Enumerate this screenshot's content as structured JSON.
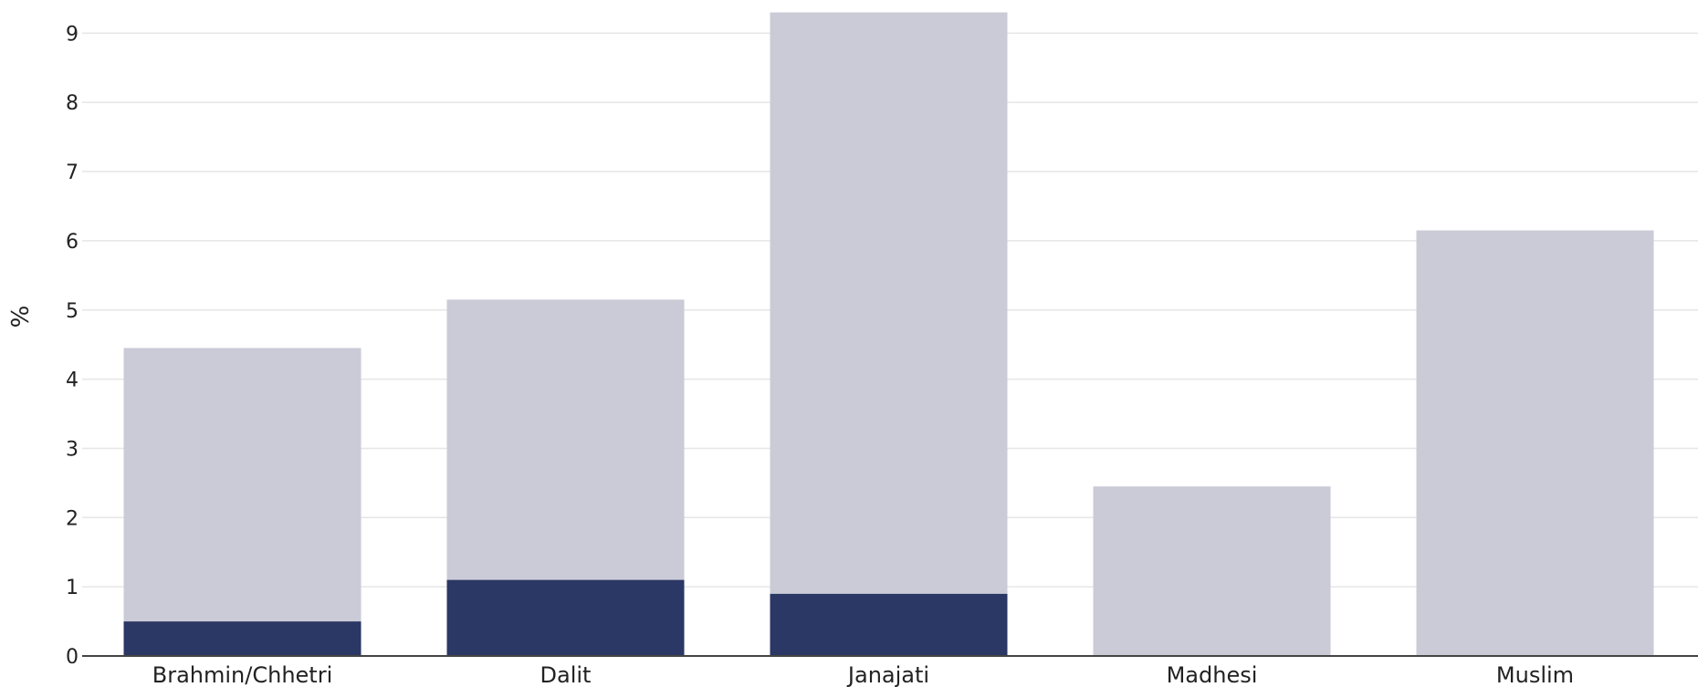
{
  "chart_data": {
    "type": "bar",
    "stacked": true,
    "title": "",
    "xlabel": "",
    "ylabel": "%",
    "ylim": [
      0,
      9.35
    ],
    "yticks": [
      0,
      1,
      2,
      3,
      4,
      5,
      6,
      7,
      8,
      9
    ],
    "grid": true,
    "legend": "none",
    "categories": [
      "Brahmin/Chhetri",
      "Dalit",
      "Janajati",
      "Madhesi",
      "Muslim"
    ],
    "series": [
      {
        "color": "#2b3764",
        "values": [
          0.5,
          1.1,
          0.9,
          0.0,
          0.0
        ]
      },
      {
        "color": "#cacbd7",
        "values": [
          3.95,
          4.05,
          8.4,
          2.45,
          6.15
        ]
      }
    ]
  }
}
